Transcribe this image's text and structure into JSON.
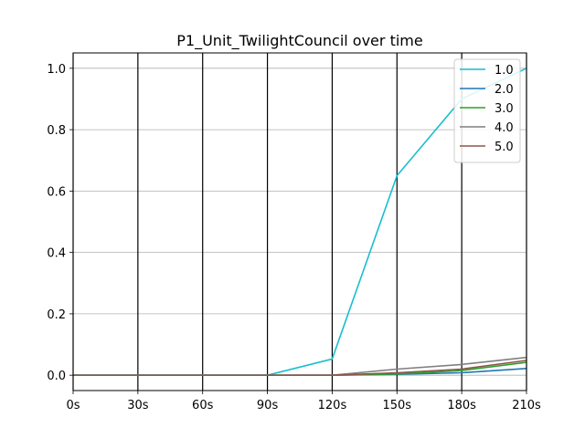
{
  "chart_data": {
    "type": "line",
    "title": "P1_Unit_TwilightCouncil over time",
    "xlabel": "",
    "ylabel": "",
    "x": [
      0,
      30,
      60,
      90,
      120,
      150,
      180,
      210
    ],
    "xtick_labels": [
      "0s",
      "30s",
      "60s",
      "90s",
      "120s",
      "150s",
      "180s",
      "210s"
    ],
    "yticks": [
      0.0,
      0.2,
      0.4,
      0.6,
      0.8,
      1.0
    ],
    "ytick_labels": [
      "0.0",
      "0.2",
      "0.4",
      "0.6",
      "0.8",
      "1.0"
    ],
    "xlim": [
      0,
      210
    ],
    "ylim": [
      -0.05,
      1.05
    ],
    "grid": "y-gray, x-black-vertical",
    "legend_position": "top-right",
    "series": [
      {
        "name": "1.0",
        "color": "#17becf",
        "values": [
          0,
          0,
          0,
          0,
          0.053,
          0.65,
          0.9,
          1.0
        ]
      },
      {
        "name": "2.0",
        "color": "#1f77b4",
        "values": [
          0,
          0,
          0,
          0,
          0,
          0.003,
          0.008,
          0.022
        ]
      },
      {
        "name": "3.0",
        "color": "#2ca02c",
        "values": [
          0,
          0,
          0,
          0,
          0,
          0.004,
          0.015,
          0.042
        ]
      },
      {
        "name": "4.0",
        "color": "#7f7f7f",
        "values": [
          0,
          0,
          0,
          0,
          0,
          0.02,
          0.035,
          0.058
        ]
      },
      {
        "name": "5.0",
        "color": "#8c564b",
        "values": [
          0,
          0,
          0,
          0,
          0,
          0.008,
          0.02,
          0.048
        ]
      }
    ]
  }
}
